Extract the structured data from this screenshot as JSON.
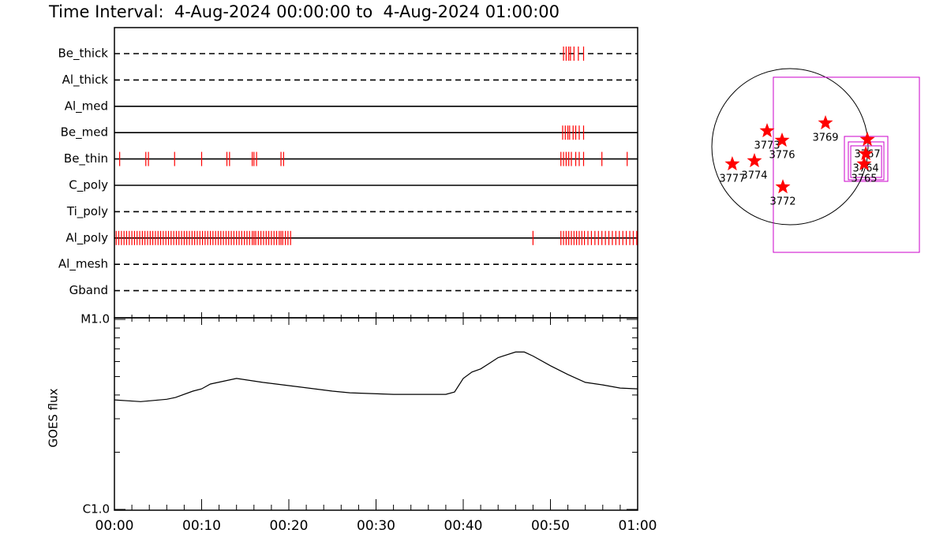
{
  "chart_data": [
    {
      "type": "timeline",
      "title": "Time Interval:  4-Aug-2024 00:00:00 to  4-Aug-2024 01:00:00",
      "color": "#ff0000",
      "xlim": [
        0,
        60
      ],
      "series": [
        {
          "name": "Be_thick",
          "dashed": true,
          "values": [
            51.5,
            51.8,
            52.1,
            52.3,
            52.7,
            53.2,
            53.8
          ]
        },
        {
          "name": "Al_thick",
          "dashed": true,
          "values": []
        },
        {
          "name": "Al_med",
          "dashed": false,
          "values": []
        },
        {
          "name": "Be_med",
          "dashed": false,
          "values": [
            51.4,
            51.7,
            52.0,
            52.2,
            52.6,
            52.9,
            53.3,
            53.8
          ]
        },
        {
          "name": "Be_thin",
          "dashed": false,
          "values": [
            0.6,
            3.6,
            3.9,
            6.9,
            10.0,
            12.9,
            13.2,
            15.8,
            16.0,
            16.3,
            19.1,
            19.4,
            51.2,
            51.5,
            51.8,
            52.1,
            52.4,
            52.9,
            53.3,
            53.8,
            55.9,
            58.8
          ]
        },
        {
          "name": "C_poly",
          "dashed": false,
          "values": []
        },
        {
          "name": "Ti_poly",
          "dashed": true,
          "values": []
        },
        {
          "name": "Al_poly",
          "dashed": false,
          "values": [
            0.2,
            0.5,
            0.8,
            1.1,
            1.4,
            1.7,
            2.0,
            2.3,
            2.6,
            2.9,
            3.2,
            3.5,
            3.8,
            4.1,
            4.4,
            4.7,
            5.0,
            5.3,
            5.6,
            5.9,
            6.2,
            6.5,
            6.8,
            7.1,
            7.4,
            7.7,
            8.0,
            8.3,
            8.6,
            8.9,
            9.2,
            9.5,
            9.8,
            10.1,
            10.4,
            10.7,
            11.0,
            11.3,
            11.6,
            11.9,
            12.2,
            12.5,
            12.8,
            13.1,
            13.4,
            13.7,
            14.0,
            14.3,
            14.6,
            14.9,
            15.2,
            15.5,
            15.8,
            16.0,
            16.2,
            16.5,
            16.8,
            17.1,
            17.4,
            17.7,
            18.0,
            18.3,
            18.6,
            18.9,
            19.1,
            19.3,
            19.6,
            19.9,
            20.2,
            48.0,
            51.2,
            51.5,
            51.8,
            52.1,
            52.4,
            52.7,
            53.0,
            53.3,
            53.6,
            53.9,
            54.3,
            54.7,
            55.1,
            55.5,
            55.9,
            56.3,
            56.7,
            57.1,
            57.5,
            57.9,
            58.3,
            58.7,
            59.1,
            59.5,
            59.9
          ]
        },
        {
          "name": "Al_mesh",
          "dashed": true,
          "values": []
        },
        {
          "name": "Gband",
          "dashed": true,
          "values": []
        }
      ]
    },
    {
      "type": "line",
      "ylabel": "GOES flux",
      "log_scale": true,
      "color": "#000000",
      "xlim": [
        0,
        60
      ],
      "ylim": [
        1e-06,
        1e-05
      ],
      "yticks": [
        {
          "value": 1e-05,
          "label": "M1.0"
        },
        {
          "value": 1e-06,
          "label": "C1.0"
        }
      ],
      "yminorticks": [
        2e-06,
        3e-06,
        4e-06,
        5e-06,
        6e-06,
        7e-06,
        8e-06,
        9e-06
      ],
      "xticks": [
        {
          "value": 0,
          "label": "00:00"
        },
        {
          "value": 10,
          "label": "00:10"
        },
        {
          "value": 20,
          "label": "00:20"
        },
        {
          "value": 30,
          "label": "00:30"
        },
        {
          "value": 40,
          "label": "00:40"
        },
        {
          "value": 50,
          "label": "00:50"
        },
        {
          "value": 60,
          "label": "01:00"
        }
      ],
      "xminorticks": [
        2,
        4,
        6,
        8,
        12,
        14,
        16,
        18,
        22,
        24,
        26,
        28,
        32,
        34,
        36,
        38,
        42,
        44,
        46,
        48,
        52,
        54,
        56,
        58
      ],
      "x": [
        0,
        3,
        6,
        7,
        9,
        10,
        11,
        14,
        17,
        20,
        25,
        27,
        32,
        38,
        39,
        40,
        41,
        42,
        43,
        44,
        46,
        47,
        48,
        50,
        52,
        54,
        56,
        58,
        60
      ],
      "values": [
        3.77e-06,
        3.69e-06,
        3.8e-06,
        3.88e-06,
        4.19e-06,
        4.31e-06,
        4.57e-06,
        4.89e-06,
        4.66e-06,
        4.48e-06,
        4.19e-06,
        4.11e-06,
        4.03e-06,
        4.03e-06,
        4.15e-06,
        4.89e-06,
        5.28e-06,
        5.49e-06,
        5.87e-06,
        6.29e-06,
        6.73e-06,
        6.73e-06,
        6.41e-06,
        5.7e-06,
        5.13e-06,
        4.66e-06,
        4.52e-06,
        4.35e-06,
        4.31e-06
      ]
    },
    {
      "type": "map",
      "radius": 950,
      "color": "#ff0000",
      "box_color": "#cc00cc",
      "points": [
        {
          "label": "3773",
          "x": -278,
          "y": 192
        },
        {
          "label": "3776",
          "x": -96,
          "y": 77
        },
        {
          "label": "3769",
          "x": 432,
          "y": 288
        },
        {
          "label": "3774",
          "x": -432,
          "y": -173
        },
        {
          "label": "3777",
          "x": -701,
          "y": -211
        },
        {
          "label": "3772",
          "x": -86,
          "y": -490
        },
        {
          "label": "3767",
          "x": 941,
          "y": 86
        },
        {
          "label": "3764",
          "x": 922,
          "y": -86
        },
        {
          "label": "3765",
          "x": 902,
          "y": -211
        }
      ],
      "boxes": [
        [
          -202,
          -1286,
          1574,
          845
        ],
        [
          662,
          -422,
          1190,
          125
        ],
        [
          710,
          -403,
          1142,
          58
        ],
        [
          739,
          -374,
          1114,
          10
        ]
      ]
    }
  ]
}
